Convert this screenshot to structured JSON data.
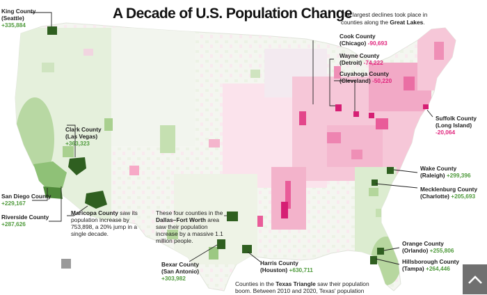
{
  "title": "A Decade of U.S. Population Change",
  "intro": {
    "text": "The largest declines took place in counties along the ",
    "highlight": "Great Lakes",
    "end": "."
  },
  "colors": {
    "growth_light": "#d4e8c4",
    "growth_mid": "#8fc177",
    "growth_dark": "#2f5f20",
    "decline_light": "#f6c7d8",
    "decline_mid": "#ea6ea4",
    "decline_dark": "#d61f74",
    "growth_text": "#4f9a3c",
    "decline_text": "#e0267d"
  },
  "counties": {
    "king": {
      "name": "King County",
      "city": "(Seattle)",
      "change": "+335,884"
    },
    "clark": {
      "name": "Clark County",
      "city": "(Las Vegas)",
      "change": "+363,323"
    },
    "san_diego": {
      "name": "San Diego County",
      "change": "+229,167"
    },
    "riverside": {
      "name": "Riverside County",
      "change": "+287,626"
    },
    "maricopa": {
      "name": "Maricopa County",
      "note1": " saw its population increase by 753,898, a 20% jump in a single decade."
    },
    "cook": {
      "name": "Cook County",
      "city": "(Chicago)",
      "change": "-90,693"
    },
    "wayne": {
      "name": "Wayne County",
      "city": "(Detroit)",
      "change": "-74,222"
    },
    "cuyahoga": {
      "name": "Cuyahoga County",
      "city": "(Cleveland)",
      "change": "-50,220"
    },
    "suffolk": {
      "name": "Suffolk County",
      "city": "(Long Island)",
      "change": "-20,064"
    },
    "wake": {
      "name": "Wake County",
      "city": "(Raleigh)",
      "change": "+299,396"
    },
    "mecklenburg": {
      "name": "Mecklenburg County",
      "city": "(Charlotte)",
      "change": "+205,693"
    },
    "orange": {
      "name": "Orange County",
      "city": "(Orlando)",
      "change": "+255,806"
    },
    "hillsborough": {
      "name": "Hillsborough County",
      "city": "(Tampa)",
      "change": "+264,446"
    },
    "bexar": {
      "name": "Bexar County",
      "city": "(San Antonio)",
      "change": "+303,982"
    },
    "harris": {
      "name": "Harris County",
      "city": "(Houston)",
      "change": "+630,711"
    }
  },
  "dfw_note": {
    "pre": "These four counties in the ",
    "highlight": "Dallas–Fort Worth",
    "post": " area saw their population increase by a massive 1.1 million people."
  },
  "texas_note": {
    "pre": "Counties in the ",
    "highlight": "Texas Triangle",
    "post": " saw their population boom. Between 2010 and 2020, Texas' population"
  },
  "scroll_top_icon": "chevron-up-icon"
}
